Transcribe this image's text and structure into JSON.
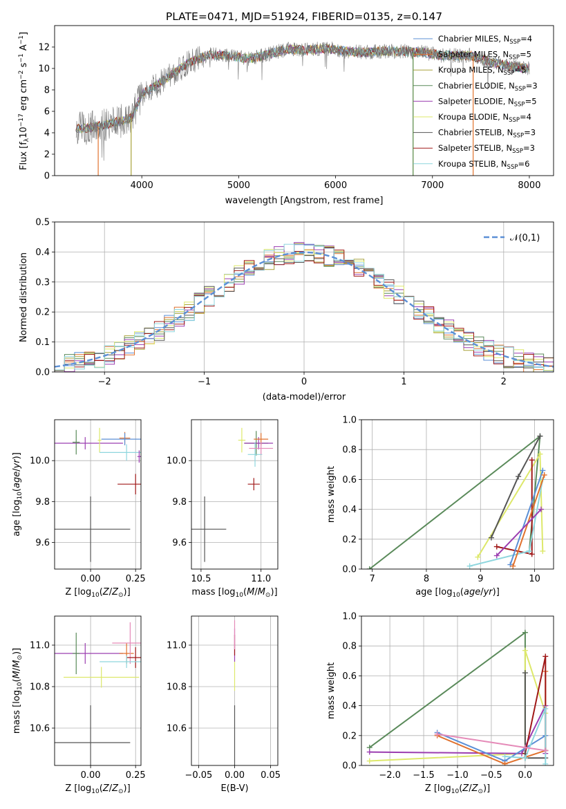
{
  "figure_title": "PLATE=0471, MJD=51924, FIBERID=0135, z=0.147",
  "colors": {
    "Chabrier MILES": "#5b8fd6",
    "Salpeter MILES": "#e0712d",
    "Kroupa MILES": "#a8a23a",
    "Chabrier ELODIE": "#5a8a5a",
    "Salpeter ELODIE": "#9b3db0",
    "Kroupa ELODIE": "#dde86a",
    "Chabrier STELIB": "#555555",
    "Salpeter STELIB": "#a01818",
    "Kroupa STELIB": "#8dd6de",
    "pink": "#e58ab8",
    "gaussian": "#5b8fd6",
    "grid": "#b0b0b0"
  },
  "chart_data": [
    {
      "panel": "spectrum",
      "type": "line",
      "title": "PLATE=0471, MJD=51924, FIBERID=0135, z=0.147",
      "xlabel": "wavelength [Angstrom, rest frame]",
      "ylabel": "Flux [f_λ 10^-17 erg cm^-2 s^-1 A^-1]",
      "xlim": [
        3100,
        8250
      ],
      "ylim": [
        0,
        14
      ],
      "xticks": [
        4000,
        5000,
        6000,
        7000,
        8000
      ],
      "yticks": [
        0,
        2,
        4,
        6,
        8,
        10,
        12
      ],
      "grid": false,
      "legend_position": "upper-right",
      "legend": [
        "Chabrier MILES, N_SSP=4",
        "Salpeter MILES, N_SSP=5",
        "Kroupa MILES, N_SSP=5",
        "Chabrier ELODIE, N_SSP=3",
        "Salpeter ELODIE, N_SSP=5",
        "Kroupa ELODIE, N_SSP=4",
        "Chabrier STELIB, N_SSP=3",
        "Salpeter STELIB, N_SSP=3",
        "Kroupa STELIB, N_SSP=6"
      ],
      "continuum_points": [
        [
          3320,
          4.4
        ],
        [
          3500,
          4.5
        ],
        [
          3700,
          4.9
        ],
        [
          3900,
          5.4
        ],
        [
          4000,
          7.6
        ],
        [
          4150,
          8.4
        ],
        [
          4300,
          9.4
        ],
        [
          4500,
          10.6
        ],
        [
          4700,
          11.3
        ],
        [
          4900,
          11.2
        ],
        [
          5100,
          10.9
        ],
        [
          5300,
          11.3
        ],
        [
          5500,
          11.8
        ],
        [
          5700,
          11.7
        ],
        [
          5900,
          11.9
        ],
        [
          6100,
          11.6
        ],
        [
          6300,
          11.5
        ],
        [
          6500,
          11.6
        ],
        [
          6700,
          11.6
        ],
        [
          6900,
          11.5
        ],
        [
          7100,
          11.2
        ],
        [
          7400,
          11.2
        ],
        [
          7600,
          10.6
        ],
        [
          7800,
          10.2
        ],
        [
          8000,
          10.0
        ]
      ]
    },
    {
      "panel": "residuals",
      "type": "area",
      "xlabel": "(data-model)/error",
      "ylabel": "Normed distribution",
      "xlim": [
        -2.5,
        2.5
      ],
      "ylim": [
        0,
        0.5
      ],
      "xticks": [
        -2,
        -1,
        0,
        1,
        2
      ],
      "yticks": [
        0.0,
        0.1,
        0.2,
        0.3,
        0.4,
        0.5
      ],
      "grid": true,
      "legend_position": "upper-right",
      "legend": [
        "𝒩(0,1)"
      ],
      "bin_width": 0.1
    },
    {
      "panel": "Z-age",
      "type": "scatter",
      "xlabel": "Z [log10(Z/Z⊙)]",
      "ylabel": "age [log10(age/yr)]",
      "xlim": [
        -0.2,
        0.28
      ],
      "ylim": [
        9.47,
        10.2
      ],
      "xticks": [
        0.0,
        0.25
      ],
      "yticks": [
        9.6,
        9.8,
        10.0
      ],
      "grid": true,
      "points": [
        {
          "model": "Chabrier STELIB",
          "x": 0.0,
          "xerr": 0.22,
          "y": 9.665,
          "yerr": 0.16
        },
        {
          "model": "Salpeter ELODIE",
          "x": -0.03,
          "xerr": 0.21,
          "y": 10.085,
          "yerr": 0.03
        },
        {
          "model": "Chabrier ELODIE",
          "x": -0.08,
          "xerr": 0.02,
          "y": 10.09,
          "yerr": 0.06
        },
        {
          "model": "Kroupa ELODIE",
          "x": 0.05,
          "xerr": 0.01,
          "y": 10.1,
          "yerr": 0.06
        },
        {
          "model": "Salpeter MILES",
          "x": 0.19,
          "xerr": 0.03,
          "y": 10.11,
          "yerr": 0.03
        },
        {
          "model": "Chabrier MILES",
          "x": 0.19,
          "xerr": 0.13,
          "y": 10.105,
          "yerr": 0.03
        },
        {
          "model": "Kroupa STELIB",
          "x": 0.2,
          "xerr": 0.15,
          "y": 10.04,
          "yerr": 0.04
        },
        {
          "model": "Salpeter STELIB",
          "x": 0.25,
          "xerr": 0.1,
          "y": 9.885,
          "yerr": 0.05
        },
        {
          "model": "Salpeter ELODIE",
          "x": 0.27,
          "xerr": 0.01,
          "y": 10.02,
          "yerr": 0.03
        }
      ]
    },
    {
      "panel": "mass-age",
      "type": "scatter",
      "xlabel": "mass [log10(M/M⊙)]",
      "ylabel": "",
      "xlim": [
        10.42,
        11.14
      ],
      "ylim": [
        9.47,
        10.2
      ],
      "xticks": [
        10.5,
        11.0
      ],
      "yticks": [
        9.6,
        9.8,
        10.0
      ],
      "grid": true,
      "points": [
        {
          "model": "Chabrier STELIB",
          "x": 10.53,
          "xerr": 0.18,
          "y": 9.665,
          "yerr": 0.16
        },
        {
          "model": "Chabrier ELODIE",
          "x": 10.96,
          "xerr": 0.1,
          "y": 10.085,
          "yerr": 0.06
        },
        {
          "model": "Kroupa ELODIE",
          "x": 10.84,
          "xerr": 0.03,
          "y": 10.1,
          "yerr": 0.06
        },
        {
          "model": "Salpeter ELODIE",
          "x": 10.98,
          "xerr": 0.12,
          "y": 10.085,
          "yerr": 0.03
        },
        {
          "model": "Salpeter MILES",
          "x": 11.0,
          "xerr": 0.06,
          "y": 10.105,
          "yerr": 0.03
        },
        {
          "model": "Kroupa STELIB",
          "x": 10.95,
          "xerr": 0.06,
          "y": 10.03,
          "yerr": 0.06
        },
        {
          "model": "Salpeter STELIB",
          "x": 10.94,
          "xerr": 0.05,
          "y": 9.885,
          "yerr": 0.03
        },
        {
          "model": "pink",
          "x": 11.0,
          "xerr": 0.1,
          "y": 10.06,
          "yerr": 0.03
        }
      ]
    },
    {
      "panel": "age-weight",
      "type": "line",
      "xlabel": "age [log10(age/yr)]",
      "ylabel": "mass weight",
      "xlim": [
        6.8,
        10.35
      ],
      "ylim": [
        0,
        1.0
      ],
      "xticks": [
        7,
        8,
        9,
        10
      ],
      "yticks": [
        0.0,
        0.2,
        0.4,
        0.6,
        0.8,
        1.0
      ],
      "grid": true,
      "series": [
        {
          "model": "Chabrier ELODIE",
          "points": [
            [
              6.95,
              0.0
            ],
            [
              10.1,
              0.89
            ],
            [
              9.9,
              0.12
            ]
          ]
        },
        {
          "model": "Kroupa ELODIE",
          "points": [
            [
              8.95,
              0.08
            ],
            [
              10.1,
              0.77
            ],
            [
              10.15,
              0.12
            ]
          ]
        },
        {
          "model": "Chabrier STELIB",
          "points": [
            [
              9.2,
              0.21
            ],
            [
              9.7,
              0.62
            ],
            [
              10.1,
              0.89
            ]
          ]
        },
        {
          "model": "Salpeter STELIB",
          "points": [
            [
              9.3,
              0.15
            ],
            [
              9.95,
              0.1
            ],
            [
              9.95,
              0.73
            ]
          ]
        },
        {
          "model": "Kroupa STELIB",
          "points": [
            [
              8.8,
              0.02
            ],
            [
              9.9,
              0.12
            ],
            [
              10.15,
              0.6
            ]
          ]
        },
        {
          "model": "Chabrier MILES",
          "points": [
            [
              9.55,
              0.03
            ],
            [
              10.15,
              0.66
            ]
          ]
        },
        {
          "model": "Salpeter MILES",
          "points": [
            [
              9.6,
              0.02
            ],
            [
              10.18,
              0.63
            ]
          ]
        },
        {
          "model": "Salpeter ELODIE",
          "points": [
            [
              9.3,
              0.09
            ],
            [
              10.12,
              0.4
            ]
          ]
        }
      ]
    },
    {
      "panel": "Z-mass",
      "type": "scatter",
      "xlabel": "Z [log10(Z/Z⊙)]",
      "ylabel": "mass [log10(M/M⊙)]",
      "xlim": [
        -0.2,
        0.28
      ],
      "ylim": [
        10.42,
        11.14
      ],
      "xticks": [
        0.0,
        0.25
      ],
      "yticks": [
        10.6,
        10.8,
        11.0
      ],
      "grid": true,
      "points": [
        {
          "model": "Chabrier STELIB",
          "x": 0.0,
          "xerr": 0.22,
          "y": 10.53,
          "yerr": 0.18
        },
        {
          "model": "Kroupa ELODIE",
          "x": 0.06,
          "xerr": 0.21,
          "y": 10.845,
          "yerr": 0.05
        },
        {
          "model": "Salpeter ELODIE",
          "x": -0.03,
          "xerr": 0.21,
          "y": 10.96,
          "yerr": 0.05
        },
        {
          "model": "Chabrier ELODIE",
          "x": -0.08,
          "xerr": 0.02,
          "y": 10.96,
          "yerr": 0.1
        },
        {
          "model": "Salpeter MILES",
          "x": 0.2,
          "xerr": 0.04,
          "y": 10.96,
          "yerr": 0.05
        },
        {
          "model": "pink",
          "x": 0.22,
          "xerr": 0.1,
          "y": 11.01,
          "yerr": 0.1
        },
        {
          "model": "Salpeter STELIB",
          "x": 0.25,
          "xerr": 0.05,
          "y": 10.94,
          "yerr": 0.05
        },
        {
          "model": "Kroupa STELIB",
          "x": 0.2,
          "xerr": 0.15,
          "y": 10.92,
          "yerr": 0.03
        }
      ]
    },
    {
      "panel": "EBV-mass",
      "type": "scatter",
      "xlabel": "E(B-V)",
      "ylabel": "",
      "xlim": [
        -0.06,
        0.06
      ],
      "ylim": [
        10.42,
        11.14
      ],
      "xticks": [
        -0.05,
        0.0,
        0.05
      ],
      "yticks": [
        10.6,
        10.8,
        11.0
      ],
      "grid": true,
      "points": [
        {
          "model": "Chabrier STELIB",
          "x": 0.0,
          "y": 10.53,
          "yerr": 0.18
        },
        {
          "model": "Kroupa ELODIE",
          "x": 0.0,
          "y": 10.85,
          "yerr": 0.07
        },
        {
          "model": "Salpeter ELODIE",
          "x": 0.0,
          "y": 11.0,
          "yerr": 0.08
        },
        {
          "model": "Salpeter STELIB",
          "x": 0.0,
          "y": 11.0,
          "yerr": 0.05
        },
        {
          "model": "pink",
          "x": 0.0,
          "y": 11.05,
          "yerr": 0.07
        }
      ]
    },
    {
      "panel": "Z-weight",
      "type": "line",
      "xlabel": "Z [log10(Z/Z⊙)]",
      "ylabel": "mass weight",
      "xlim": [
        -2.42,
        0.42
      ],
      "ylim": [
        0,
        1.0
      ],
      "xticks": [
        -2.0,
        -1.5,
        -1.0,
        -0.5,
        0.0
      ],
      "yticks": [
        0.0,
        0.2,
        0.4,
        0.6,
        0.8,
        1.0
      ],
      "grid": true,
      "series": [
        {
          "model": "Chabrier ELODIE",
          "points": [
            [
              -2.3,
              0.12
            ],
            [
              0.0,
              0.89
            ],
            [
              0.0,
              0.05
            ]
          ]
        },
        {
          "model": "Kroupa ELODIE",
          "points": [
            [
              -2.3,
              0.03
            ],
            [
              0.0,
              0.08
            ],
            [
              0.0,
              0.77
            ],
            [
              0.3,
              0.35
            ]
          ]
        },
        {
          "model": "Salpeter ELODIE",
          "points": [
            [
              -2.3,
              0.09
            ],
            [
              -0.05,
              0.08
            ],
            [
              0.3,
              0.4
            ],
            [
              0.3,
              0.08
            ]
          ]
        },
        {
          "model": "Chabrier MILES",
          "points": [
            [
              -1.3,
              0.22
            ],
            [
              -0.3,
              0.03
            ],
            [
              0.3,
              0.2
            ]
          ]
        },
        {
          "model": "Salpeter MILES",
          "points": [
            [
              -1.3,
              0.2
            ],
            [
              -0.3,
              0.01
            ],
            [
              0.3,
              0.1
            ],
            [
              0.3,
              0.63
            ]
          ]
        },
        {
          "model": "Salpeter STELIB",
          "points": [
            [
              0.0,
              0.08
            ],
            [
              0.3,
              0.73
            ],
            [
              0.3,
              0.1
            ]
          ]
        },
        {
          "model": "Chabrier STELIB",
          "points": [
            [
              0.0,
              0.62
            ],
            [
              0.0,
              0.05
            ],
            [
              0.3,
              0.05
            ]
          ]
        },
        {
          "model": "Kroupa STELIB",
          "points": [
            [
              -0.3,
              0.06
            ],
            [
              0.0,
              0.05
            ],
            [
              0.3,
              0.38
            ],
            [
              0.3,
              0.01
            ]
          ]
        },
        {
          "model": "pink",
          "points": [
            [
              -1.3,
              0.21
            ],
            [
              0.0,
              0.12
            ],
            [
              0.3,
              0.1
            ]
          ]
        }
      ]
    }
  ]
}
